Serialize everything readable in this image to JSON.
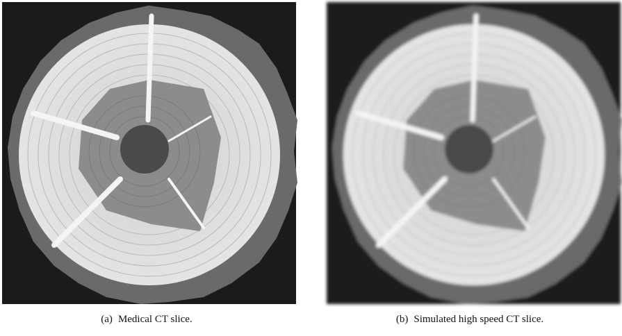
{
  "panels": [
    {
      "label": "(a)",
      "caption": "Medical CT slice."
    },
    {
      "label": "(b)",
      "caption": "Simulated high speed CT slice."
    }
  ]
}
